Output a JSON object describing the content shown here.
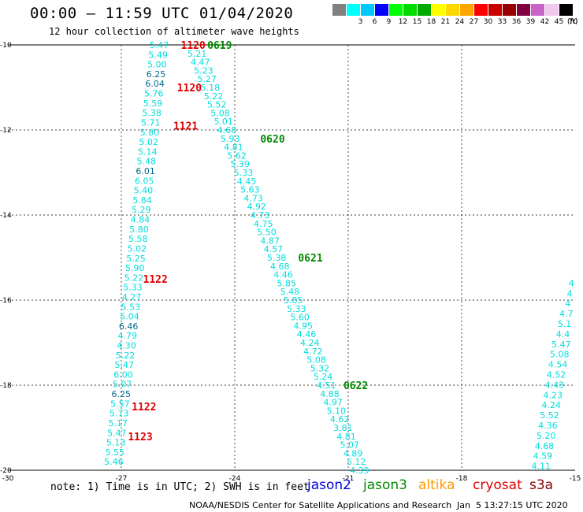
{
  "title": "00:00 – 11:59 UTC 01/04/2020",
  "subtitle": "12 hour collection of altimeter wave heights",
  "scale": {
    "bins": [
      {
        "label": "",
        "color": "#808080"
      },
      {
        "label": "3",
        "color": "#00ffff"
      },
      {
        "label": "6",
        "color": "#00c8ff"
      },
      {
        "label": "9",
        "color": "#0000ff"
      },
      {
        "label": "12",
        "color": "#00ff00"
      },
      {
        "label": "15",
        "color": "#00dc00"
      },
      {
        "label": "18",
        "color": "#00aa00"
      },
      {
        "label": "21",
        "color": "#ffff00"
      },
      {
        "label": "24",
        "color": "#ffd700"
      },
      {
        "label": "27",
        "color": "#ffa500"
      },
      {
        "label": "30",
        "color": "#ff0000"
      },
      {
        "label": "33",
        "color": "#c80000"
      },
      {
        "label": "36",
        "color": "#960000"
      },
      {
        "label": "39",
        "color": "#800040"
      },
      {
        "label": "42",
        "color": "#c864c8"
      },
      {
        "label": "45",
        "color": "#f0c8f0"
      },
      {
        "label": "70",
        "color": "#000000"
      }
    ],
    "unit": "(ft)"
  },
  "note": "note: 1) Time is in UTC; 2) SWH is in feet",
  "legend": [
    {
      "name": "jason2",
      "color": "#0000dd"
    },
    {
      "name": "jason3",
      "color": "#008800"
    },
    {
      "name": "altika",
      "color": "#ff9900"
    },
    {
      "name": "cryosat",
      "color": "#dd0000"
    },
    {
      "name": "s3a",
      "color": "#880000"
    }
  ],
  "credit": "NOAA/NESDIS Center for Satellite Applications and Research",
  "stamp": "Jan  5 13:27:15 UTC 2020",
  "colors": {
    "swh": "#00dddd",
    "swh_dark": "#006a8a",
    "time_cryosat": "#dd0000",
    "time_jason3": "#008800"
  },
  "chart_data": {
    "type": "scatter",
    "xlim": [
      -30,
      -15
    ],
    "ylim": [
      -20,
      -10
    ],
    "grid": true,
    "x_ticks": [
      "-30",
      "-27",
      "-24",
      "-21",
      "-18",
      "-15"
    ],
    "y_ticks": [
      "-10",
      "-12",
      "-14",
      "-16",
      "-18",
      "-20"
    ],
    "tracks": [
      {
        "satellite": "cryosat",
        "text_color": "swh",
        "start": [
          -26.0,
          -10.0
        ],
        "end": [
          -27.2,
          -19.8
        ],
        "values": [
          "5.47",
          "5.49",
          "5.00",
          "6.25",
          "6.04",
          "5.76",
          "5.59",
          "5.38",
          "5.71",
          "5.80",
          "5.02",
          "5.14",
          "5.48",
          "6.01",
          "6.05",
          "5.40",
          "5.84",
          "5.29",
          "4.84",
          "5.80",
          "5.58",
          "5.02",
          "5.25",
          "5.90",
          "5.22",
          "5.33",
          "4.27",
          "5.53",
          "5.04",
          "6.46",
          "4.79",
          "4.30",
          "5.22",
          "5.47",
          "6.00",
          "5.07",
          "6.25",
          "5.57",
          "5.73",
          "5.17",
          "5.47",
          "5.13",
          "5.55",
          "5.46"
        ],
        "dark_values": [
          "6.25",
          "6.04",
          "6.01",
          "6.46",
          "6.25"
        ],
        "times": [
          {
            "text": "1120",
            "x": -25.1,
            "y": -10.0
          },
          {
            "text": "1120",
            "x": -25.2,
            "y": -11.0
          },
          {
            "text": "1121",
            "x": -25.3,
            "y": -11.9
          },
          {
            "text": "1122",
            "x": -26.1,
            "y": -15.5
          },
          {
            "text": "1122",
            "x": -26.4,
            "y": -18.5
          },
          {
            "text": "1123",
            "x": -26.5,
            "y": -19.2
          }
        ]
      },
      {
        "satellite": "jason3",
        "text_color": "swh",
        "start": [
          -25.0,
          -10.2
        ],
        "end": [
          -20.7,
          -20.0
        ],
        "values": [
          "5.21",
          "4.47",
          "5.23",
          "5.27",
          "5.18",
          "5.22",
          "5.52",
          "5.08",
          "5.01",
          "4.68",
          "5.93",
          "4.81",
          "5.62",
          "5.39",
          "5.33",
          "4.45",
          "5.63",
          "4.73",
          "4.92",
          "4.73",
          "4.75",
          "5.50",
          "4.87",
          "4.57",
          "5.38",
          "4.68",
          "4.46",
          "5.85",
          "5.48",
          "5.85",
          "5.33",
          "5.60",
          "4.95",
          "4.46",
          "4.24",
          "4.72",
          "5.08",
          "5.32",
          "5.24",
          "4.51",
          "4.88",
          "4.97",
          "5.10",
          "4.62",
          "3.81",
          "4.81",
          "5.07",
          "4.89",
          "5.12",
          "4.39"
        ],
        "dark_values": [],
        "times": [
          {
            "text": "0619",
            "x": -24.4,
            "y": -10.0
          },
          {
            "text": "0620",
            "x": -23.0,
            "y": -12.2
          },
          {
            "text": "0621",
            "x": -22.0,
            "y": -15.0
          },
          {
            "text": "0622",
            "x": -20.8,
            "y": -18.0
          }
        ]
      },
      {
        "satellite": "jason3",
        "text_color": "swh",
        "start": [
          -15.1,
          -15.6
        ],
        "end": [
          -15.9,
          -19.9
        ],
        "values": [
          "4",
          "4",
          "4",
          "4.7",
          "5.1",
          "4.4",
          "5.47",
          "5.08",
          "4.54",
          "4.52",
          "4.43",
          "4.23",
          "4.24",
          "5.52",
          "4.36",
          "5.20",
          "4.68",
          "4.59",
          "4.11"
        ],
        "dark_values": [],
        "times": []
      }
    ]
  }
}
